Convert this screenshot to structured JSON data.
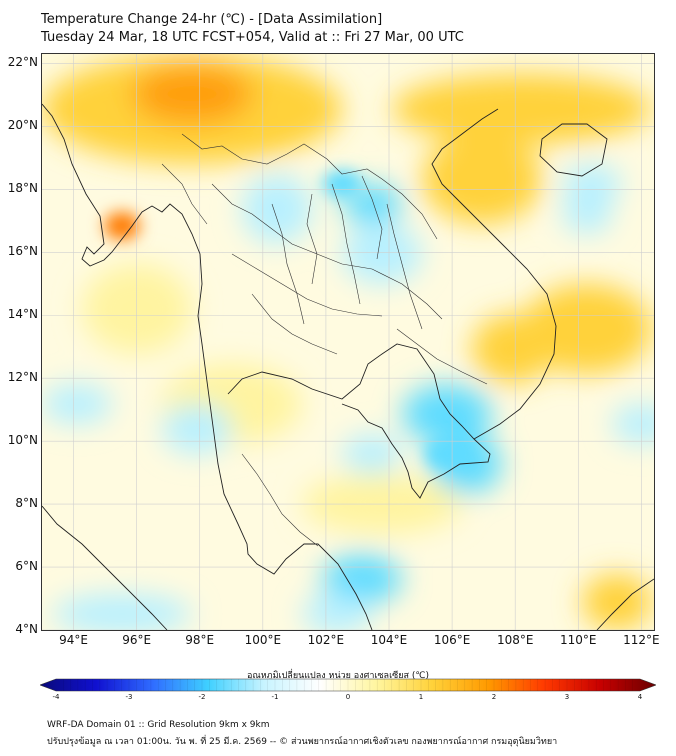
{
  "header": {
    "title_line1": "Temperature Change 24-hr (℃) - [Data Assimilation]",
    "title_line2": "Tuesday 24 Mar, 18 UTC FCST+054, Valid at :: Fri 27 Mar, 00 UTC"
  },
  "map": {
    "lat_labels": [
      "22°N",
      "20°N",
      "18°N",
      "16°N",
      "14°N",
      "12°N",
      "10°N",
      "8°N",
      "6°N",
      "4°N"
    ],
    "lon_labels": [
      "94°E",
      "96°E",
      "98°E",
      "100°E",
      "102°E",
      "104°E",
      "106°E",
      "108°E",
      "110°E",
      "112°E"
    ],
    "lat_range": [
      4,
      22.3
    ],
    "lon_range": [
      93.0,
      112.4
    ],
    "field_colors": {
      "warm_strong": "#ff9f0f",
      "warm": "#ffd23a",
      "warm_light": "#fff4a0",
      "neutral": "#ffffff",
      "cool_light": "#b8f0ff",
      "cool": "#5fdcff"
    }
  },
  "colorbar": {
    "title": "อุณหภูมิเปลี่ยนแปลง หน่วย องศาเซลเซียส (℃)",
    "ticks": [
      "-4",
      "-3",
      "-2",
      "-1",
      "0",
      "1",
      "2",
      "3",
      "4"
    ],
    "range": [
      -4,
      4
    ],
    "stops": [
      "#0a0a7a",
      "#1010d0",
      "#2f6bff",
      "#3fd0ff",
      "#c8f4ff",
      "#ffffff",
      "#fff6a0",
      "#ffd23a",
      "#ff9a00",
      "#ff3a00",
      "#c80000",
      "#6a0000"
    ]
  },
  "footer": {
    "line1": "WRF-DA Domain 01 :: Grid Resolution 9km x 9km",
    "line2": "ปรับปรุงข้อมูล ณ เวลา 01:00น. วัน พ. ที่ 25 มี.ค. 2569 -- © ส่วนพยากรณ์อากาศเชิงตัวเลข กองพยากรณ์อากาศ กรมอุตุนิยมวิทยา"
  }
}
